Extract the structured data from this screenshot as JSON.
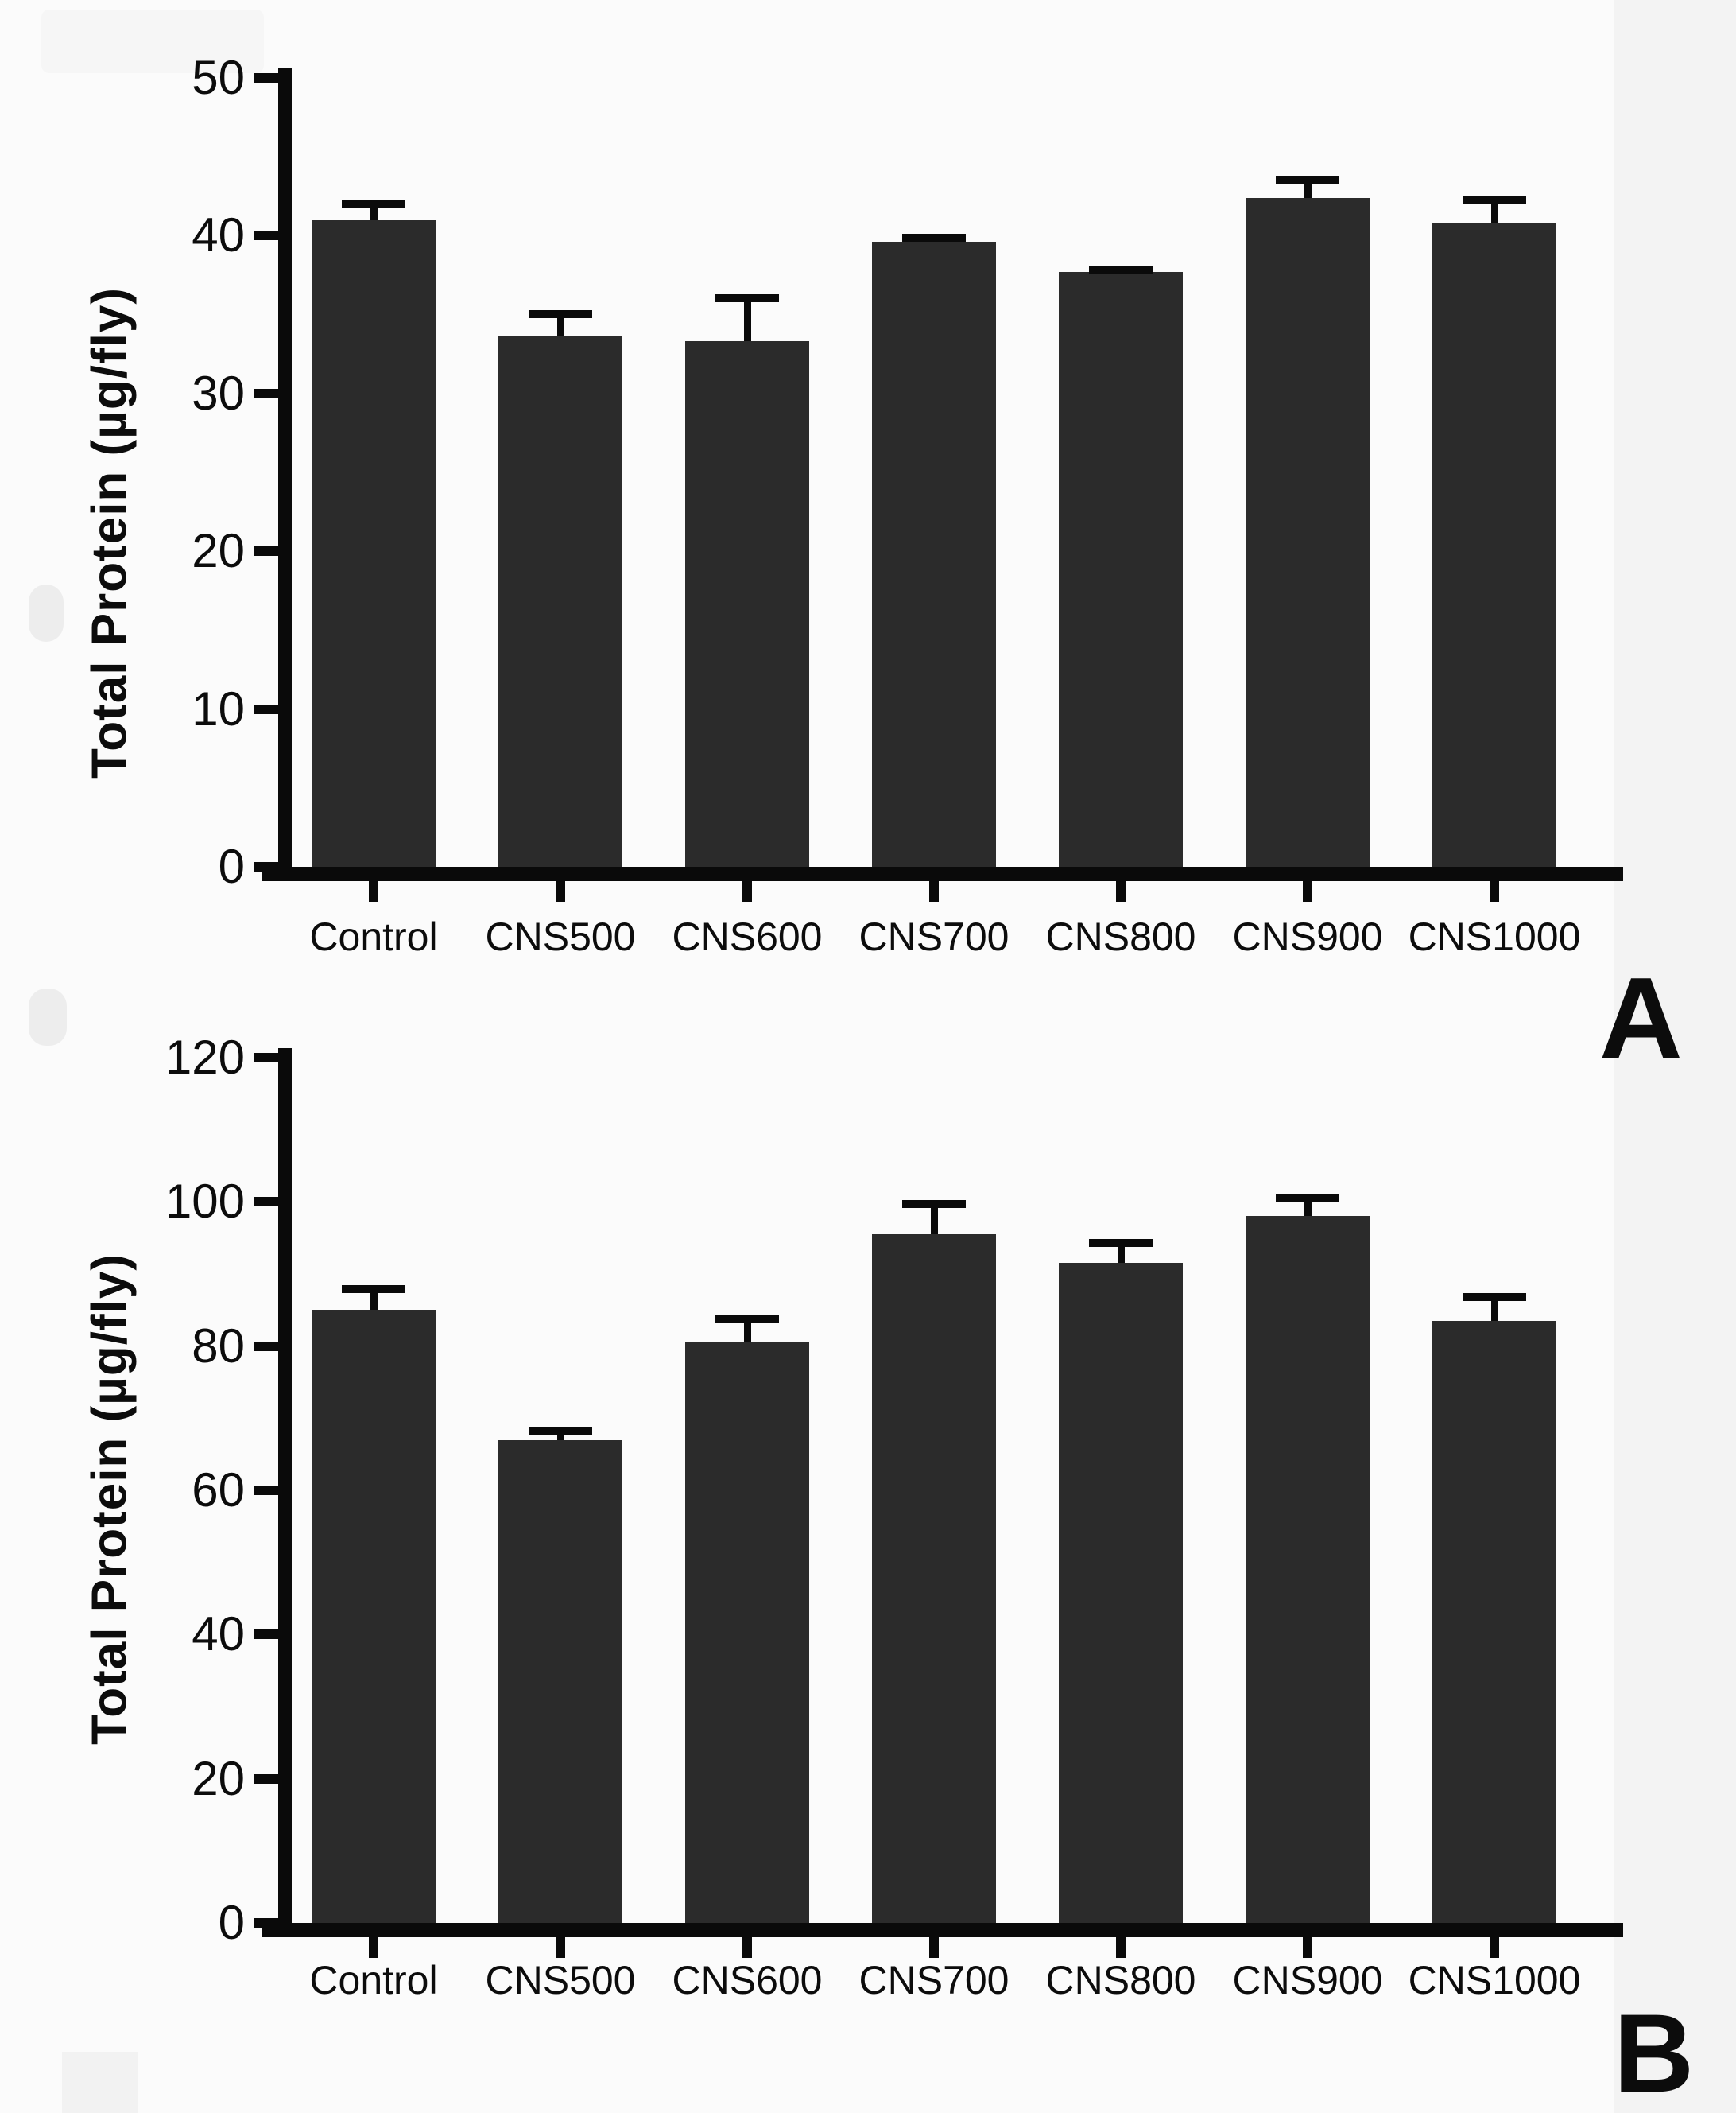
{
  "figure": {
    "background_color": "#fbfbfb",
    "bar_color": "#2b2b2b",
    "axis_color": "#0a0a0a",
    "text_color": "#0c0c0c"
  },
  "chart_data": [
    {
      "type": "bar",
      "panel_label": "A",
      "ylabel": "Total Protein (µg/fly)",
      "xlabel": "",
      "categories": [
        "Control",
        "CNS500",
        "CNS600",
        "CNS700",
        "CNS800",
        "CNS900",
        "CNS1000"
      ],
      "values": [
        41.0,
        33.6,
        33.3,
        39.6,
        37.7,
        42.4,
        40.8
      ],
      "errors_plus": [
        1.3,
        1.7,
        3.0,
        0.5,
        0.4,
        1.4,
        1.7
      ],
      "yticks": [
        0,
        10,
        20,
        30,
        40,
        50
      ],
      "ylim": [
        0,
        50
      ],
      "grid": false,
      "legend": "none",
      "error_bars": "upper only"
    },
    {
      "type": "bar",
      "panel_label": "B",
      "ylabel": "Total Protein (µg/fly)",
      "xlabel": "",
      "categories": [
        "Control",
        "CNS500",
        "CNS600",
        "CNS700",
        "CNS800",
        "CNS900",
        "CNS1000"
      ],
      "values": [
        85.0,
        67.0,
        80.5,
        95.5,
        91.5,
        98.0,
        83.5
      ],
      "errors_plus": [
        3.5,
        1.8,
        3.9,
        4.8,
        3.3,
        3.0,
        3.9
      ],
      "yticks": [
        0,
        20,
        40,
        60,
        80,
        100,
        120
      ],
      "ylim": [
        0,
        120
      ],
      "grid": false,
      "legend": "none",
      "error_bars": "upper only"
    }
  ]
}
